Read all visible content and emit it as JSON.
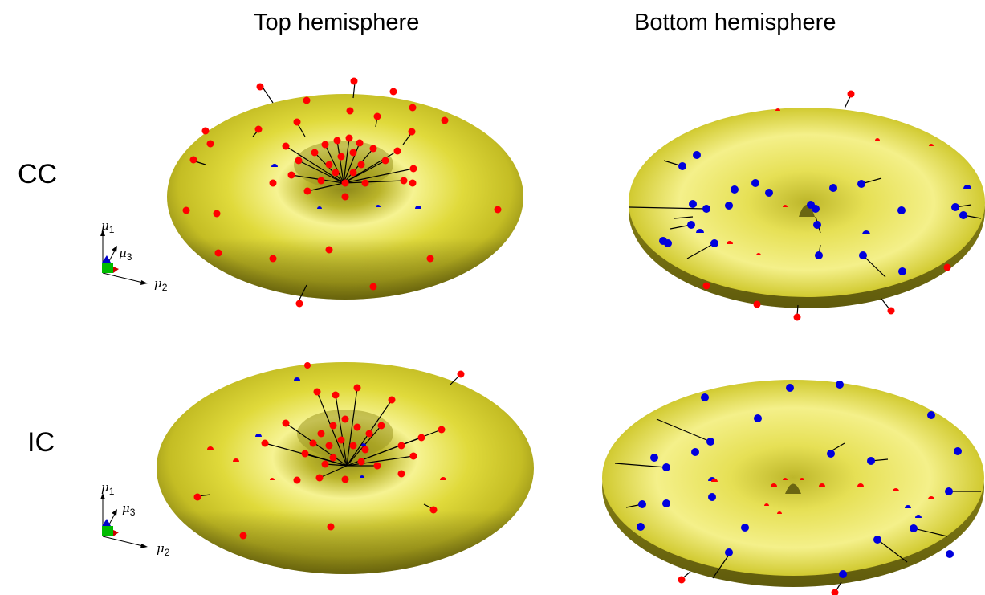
{
  "column_titles": {
    "top": "Top hemisphere",
    "bottom": "Bottom hemisphere"
  },
  "row_labels": {
    "cc": "CC",
    "ic": "IC"
  },
  "axis_labels": {
    "mu": "μ",
    "sub1": "1",
    "sub2": "2",
    "sub3": "3"
  },
  "colors": {
    "surface": "#d8d234",
    "surface_dark": "#6f6b12",
    "surface_light": "#fbf9a4",
    "marker_red": "#ff0000",
    "marker_blue": "#0000dd",
    "stem": "#000000",
    "axis_x": "#000000",
    "axis_green": "#00bb00",
    "axis_blue": "#0000cc",
    "axis_red": "#cc0000"
  }
}
